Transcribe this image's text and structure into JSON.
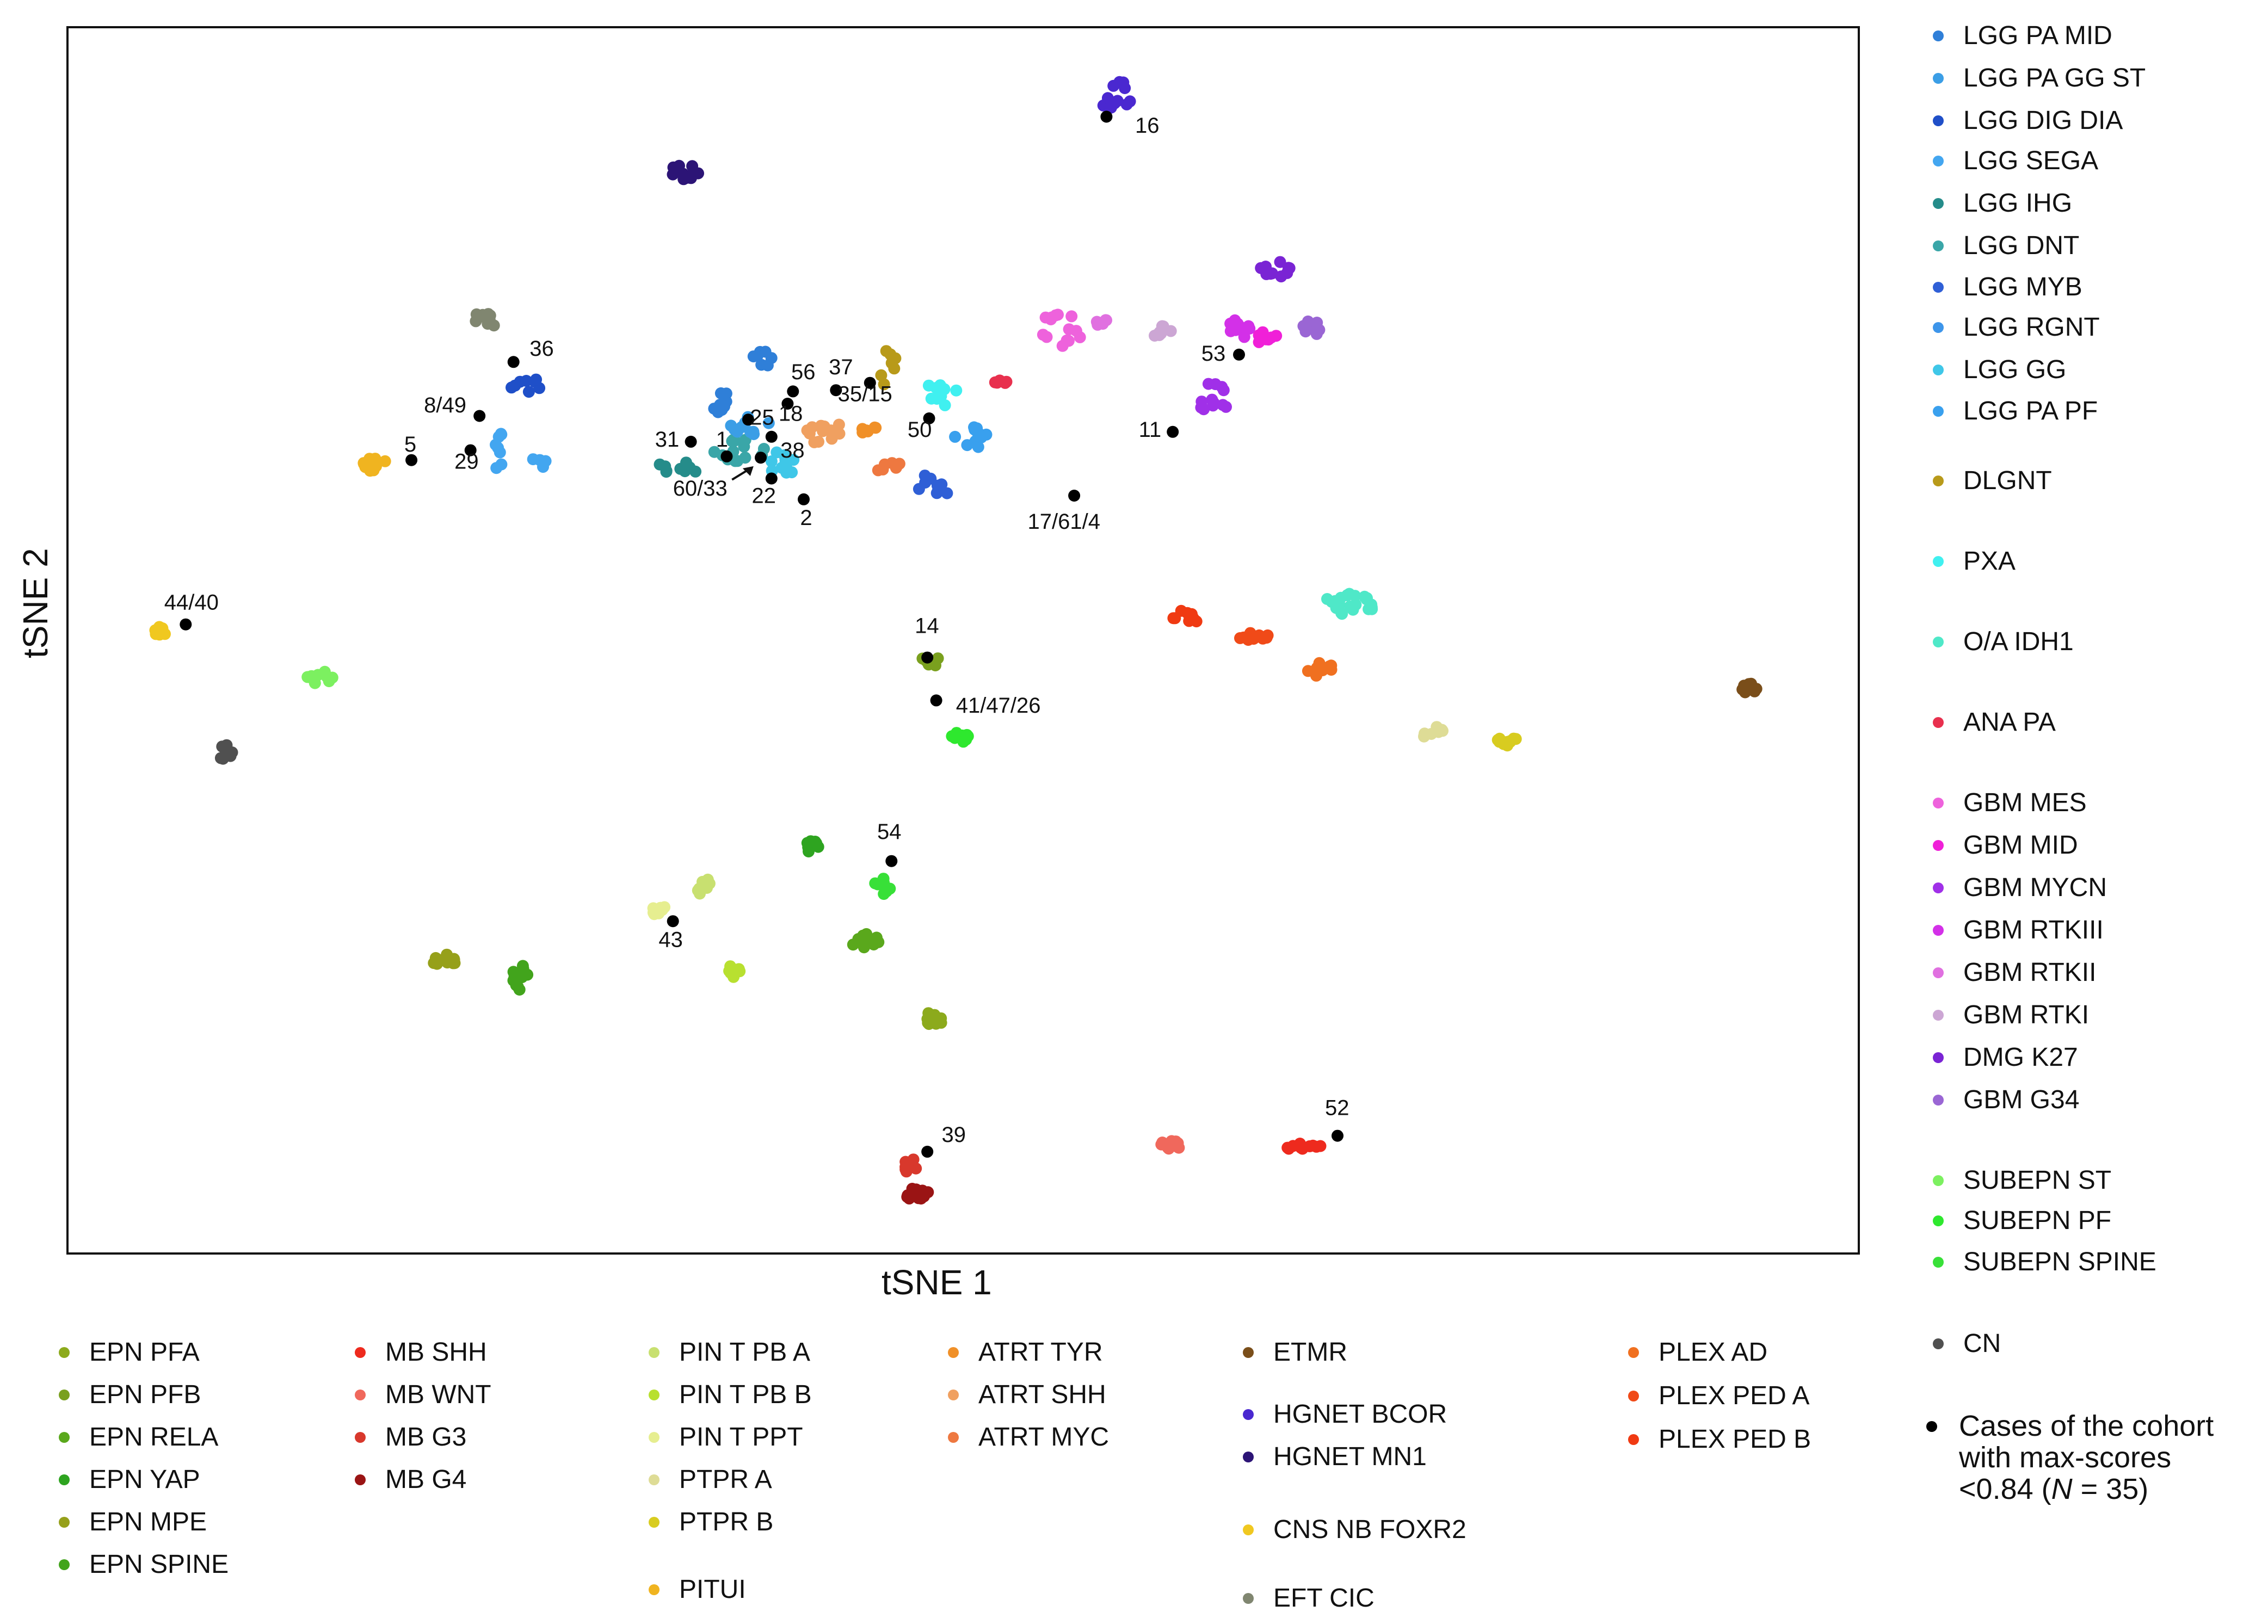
{
  "chart_data": {
    "type": "scatter",
    "xlabel": "tSNE 1",
    "ylabel": "tSNE 2",
    "xlim": [
      0,
      100
    ],
    "ylim": [
      0,
      100
    ],
    "right_legend": [
      {
        "label": "LGG PA MID",
        "color": "#2f7fd8"
      },
      {
        "label": "LGG PA GG ST",
        "color": "#3b9ee6"
      },
      {
        "label": "LGG DIG DIA",
        "color": "#1f4fc8"
      },
      {
        "label": "LGG SEGA",
        "color": "#43a6f0"
      },
      {
        "label": "LGG IHG",
        "color": "#258c8a"
      },
      {
        "label": "LGG DNT",
        "color": "#3aa6a8"
      },
      {
        "label": "LGG MYB",
        "color": "#2f5fd6"
      },
      {
        "label": "LGG RGNT",
        "color": "#3d95ea"
      },
      {
        "label": "LGG GG",
        "color": "#3fc7e8"
      },
      {
        "label": "LGG PA PF",
        "color": "#39a0ee"
      },
      {
        "label": "DLGNT",
        "color": "#b89a1a"
      },
      {
        "label": "PXA",
        "color": "#40f0f0"
      },
      {
        "label": "O/A IDH1",
        "color": "#4fe8c8"
      },
      {
        "label": "ANA PA",
        "color": "#e8304e"
      },
      {
        "label": "GBM MES",
        "color": "#ee62dc"
      },
      {
        "label": "GBM MID",
        "color": "#f020d8"
      },
      {
        "label": "GBM MYCN",
        "color": "#a030e8"
      },
      {
        "label": "GBM RTKIII",
        "color": "#d330e8"
      },
      {
        "label": "GBM RTKII",
        "color": "#e070e0"
      },
      {
        "label": "GBM RTKI",
        "color": "#cca6d4"
      },
      {
        "label": "DMG K27",
        "color": "#7a24d4"
      },
      {
        "label": "GBM G34",
        "color": "#9a66d4"
      },
      {
        "label": "SUBEPN ST",
        "color": "#7cf060"
      },
      {
        "label": "SUBEPN PF",
        "color": "#2ee82e"
      },
      {
        "label": "SUBEPN SPINE",
        "color": "#38e038"
      },
      {
        "label": "CN",
        "color": "#505050"
      }
    ],
    "bottom_legend": [
      {
        "label": "EPN PFA",
        "color": "#8caa1c"
      },
      {
        "label": "EPN PFB",
        "color": "#7aa01e"
      },
      {
        "label": "EPN RELA",
        "color": "#5aa81c"
      },
      {
        "label": "EPN YAP",
        "color": "#2ea420"
      },
      {
        "label": "EPN MPE",
        "color": "#96a01a"
      },
      {
        "label": "EPN SPINE",
        "color": "#42a41c"
      },
      {
        "label": "MB SHH",
        "color": "#ee2a1e"
      },
      {
        "label": "MB WNT",
        "color": "#f0685c"
      },
      {
        "label": "MB G3",
        "color": "#d8382c"
      },
      {
        "label": "MB G4",
        "color": "#9a1414"
      },
      {
        "label": "PIN T PB A",
        "color": "#c8e070"
      },
      {
        "label": "PIN T PB B",
        "color": "#b8e030"
      },
      {
        "label": "PIN T PPT",
        "color": "#e6ee90"
      },
      {
        "label": "PTPR A",
        "color": "#dedc96"
      },
      {
        "label": "PTPR B",
        "color": "#d8cc20"
      },
      {
        "label": "PITUI",
        "color": "#f0b420"
      },
      {
        "label": "ATRT TYR",
        "color": "#f09028"
      },
      {
        "label": "ATRT SHH",
        "color": "#f0a060"
      },
      {
        "label": "ATRT MYC",
        "color": "#ee7840"
      },
      {
        "label": "ETMR",
        "color": "#7a4e1a"
      },
      {
        "label": "HGNET BCOR",
        "color": "#4a28d0"
      },
      {
        "label": "HGNET MN1",
        "color": "#2c1476"
      },
      {
        "label": "CNS NB FOXR2",
        "color": "#f0c820"
      },
      {
        "label": "EFT CIC",
        "color": "#808670"
      },
      {
        "label": "PLEX AD",
        "color": "#f07020"
      },
      {
        "label": "PLEX PED A",
        "color": "#f04a18"
      },
      {
        "label": "PLEX PED B",
        "color": "#f03a12"
      }
    ],
    "cohort_legend": {
      "color": "#000000",
      "line1": "Cases of the cohort",
      "line2": "with max-scores",
      "line3_prefix": "<0.84 (",
      "line3_n": "N",
      "line3_suffix": " = 35)"
    },
    "clusters": [
      {
        "label": "HGNET BCOR",
        "color": "#4a28d0",
        "x": 58.5,
        "y": 94.5,
        "n": 14,
        "sx": 1.0,
        "sy": 1.2
      },
      {
        "label": "HGNET MN1",
        "color": "#2c1476",
        "x": 34.6,
        "y": 88.2,
        "n": 12,
        "sx": 0.9,
        "sy": 1.0
      },
      {
        "label": "EFT CIC",
        "color": "#808670",
        "x": 23.6,
        "y": 76.2,
        "n": 10,
        "sx": 0.9,
        "sy": 0.8
      },
      {
        "label": "DMG K27",
        "color": "#7a24d4",
        "x": 67.5,
        "y": 80.3,
        "n": 10,
        "sx": 0.9,
        "sy": 0.8
      },
      {
        "label": "DLGNT",
        "color": "#b89a1a",
        "x": 45.8,
        "y": 72.2,
        "n": 7,
        "sx": 0.5,
        "sy": 1.6
      },
      {
        "label": "LGG PA MID",
        "color": "#2f7fd8",
        "x": 38.9,
        "y": 73.0,
        "n": 7,
        "sx": 0.7,
        "sy": 0.6
      },
      {
        "label": "LGG PA MID",
        "color": "#2f7fd8",
        "x": 36.8,
        "y": 69.4,
        "n": 10,
        "sx": 0.9,
        "sy": 1.0
      },
      {
        "label": "LGG DIG DIA",
        "color": "#1f4fc8",
        "x": 25.6,
        "y": 70.7,
        "n": 8,
        "sx": 0.9,
        "sy": 0.8
      },
      {
        "label": "LGG SEGA",
        "color": "#43a6f0",
        "x": 24.1,
        "y": 66.5,
        "n": 6,
        "sx": 0.4,
        "sy": 1.4
      },
      {
        "label": "LGG SEGA",
        "color": "#43a6f0",
        "x": 26.3,
        "y": 64.3,
        "n": 4,
        "sx": 0.5,
        "sy": 0.6
      },
      {
        "label": "LGG SEGA",
        "color": "#43a6f0",
        "x": 24.2,
        "y": 64.2,
        "n": 2,
        "sx": 0.3,
        "sy": 0.3
      },
      {
        "label": "PITUI",
        "color": "#f0b420",
        "x": 17.2,
        "y": 64.3,
        "n": 12,
        "sx": 1.1,
        "sy": 0.6
      },
      {
        "label": "LGG IHG",
        "color": "#258c8a",
        "x": 34.0,
        "y": 64.0,
        "n": 9,
        "sx": 1.2,
        "sy": 0.6
      },
      {
        "label": "LGG DNT",
        "color": "#3aa6a8",
        "x": 37.6,
        "y": 65.5,
        "n": 14,
        "sx": 1.6,
        "sy": 0.9
      },
      {
        "label": "LGG GG",
        "color": "#3fc7e8",
        "x": 40.0,
        "y": 64.5,
        "n": 12,
        "sx": 1.0,
        "sy": 1.0
      },
      {
        "label": "LGG PA GG ST",
        "color": "#3b9ee6",
        "x": 38.0,
        "y": 67.5,
        "n": 10,
        "sx": 1.2,
        "sy": 0.8
      },
      {
        "label": "ATRT SHH",
        "color": "#f0a060",
        "x": 42.2,
        "y": 67.0,
        "n": 12,
        "sx": 1.1,
        "sy": 1.0
      },
      {
        "label": "ATRT TYR",
        "color": "#f09028",
        "x": 44.5,
        "y": 67.4,
        "n": 6,
        "sx": 0.7,
        "sy": 0.5
      },
      {
        "label": "ATRT MYC",
        "color": "#ee7840",
        "x": 45.8,
        "y": 64.3,
        "n": 8,
        "sx": 0.8,
        "sy": 0.6
      },
      {
        "label": "PXA",
        "color": "#40f0f0",
        "x": 48.8,
        "y": 70.2,
        "n": 10,
        "sx": 0.9,
        "sy": 1.2
      },
      {
        "label": "LGG PA PF",
        "color": "#39a0ee",
        "x": 50.5,
        "y": 66.5,
        "n": 12,
        "sx": 1.0,
        "sy": 1.0
      },
      {
        "label": "LGG MYB",
        "color": "#2f5fd6",
        "x": 48.4,
        "y": 62.5,
        "n": 9,
        "sx": 0.9,
        "sy": 1.2
      },
      {
        "label": "ANA PA",
        "color": "#e8304e",
        "x": 52.5,
        "y": 71.0,
        "n": 5,
        "sx": 0.9,
        "sy": 0.3
      },
      {
        "label": "GBM MES",
        "color": "#ee62dc",
        "x": 55.5,
        "y": 75.5,
        "n": 14,
        "sx": 1.2,
        "sy": 1.6
      },
      {
        "label": "GBM RTKII",
        "color": "#e070e0",
        "x": 57.5,
        "y": 75.9,
        "n": 6,
        "sx": 0.8,
        "sy": 0.3
      },
      {
        "label": "GBM RTKI",
        "color": "#cca6d4",
        "x": 61.0,
        "y": 75.3,
        "n": 8,
        "sx": 1.0,
        "sy": 0.5
      },
      {
        "label": "GBM RTKIII",
        "color": "#d330e8",
        "x": 65.5,
        "y": 75.6,
        "n": 12,
        "sx": 0.7,
        "sy": 1.0
      },
      {
        "label": "GBM MID",
        "color": "#f020d8",
        "x": 67.0,
        "y": 74.6,
        "n": 8,
        "sx": 0.6,
        "sy": 0.6
      },
      {
        "label": "GBM G34",
        "color": "#9a66d4",
        "x": 69.5,
        "y": 75.5,
        "n": 10,
        "sx": 0.8,
        "sy": 0.6
      },
      {
        "label": "GBM MYCN",
        "color": "#a030e8",
        "x": 63.9,
        "y": 69.8,
        "n": 12,
        "sx": 1.0,
        "sy": 1.2
      },
      {
        "label": "CNS NB FOXR2",
        "color": "#f0c820",
        "x": 5.2,
        "y": 50.7,
        "n": 8,
        "sx": 0.5,
        "sy": 0.5
      },
      {
        "label": "SUBEPN ST",
        "color": "#7cf060",
        "x": 14.1,
        "y": 47.0,
        "n": 10,
        "sx": 0.7,
        "sy": 0.6
      },
      {
        "label": "CN",
        "color": "#505050",
        "x": 8.8,
        "y": 41.0,
        "n": 8,
        "sx": 0.5,
        "sy": 0.8
      },
      {
        "label": "O/A IDH1",
        "color": "#4fe8c8",
        "x": 71.6,
        "y": 53.0,
        "n": 22,
        "sx": 1.5,
        "sy": 0.9
      },
      {
        "label": "PLEX PED B",
        "color": "#f03a12",
        "x": 62.5,
        "y": 52.0,
        "n": 10,
        "sx": 0.8,
        "sy": 0.8
      },
      {
        "label": "PLEX PED A",
        "color": "#f04a18",
        "x": 66.0,
        "y": 50.5,
        "n": 10,
        "sx": 1.2,
        "sy": 0.6
      },
      {
        "label": "PLEX AD",
        "color": "#f07020",
        "x": 70.0,
        "y": 47.6,
        "n": 10,
        "sx": 0.8,
        "sy": 0.6
      },
      {
        "label": "ETMR",
        "color": "#7a4e1a",
        "x": 94.0,
        "y": 46.0,
        "n": 10,
        "sx": 0.6,
        "sy": 0.6
      },
      {
        "label": "PTPR A",
        "color": "#dedc96",
        "x": 76.2,
        "y": 42.5,
        "n": 10,
        "sx": 0.6,
        "sy": 0.6
      },
      {
        "label": "PTPR B",
        "color": "#d8cc20",
        "x": 80.4,
        "y": 41.9,
        "n": 10,
        "sx": 0.6,
        "sy": 0.5
      },
      {
        "label": "EPN PFB",
        "color": "#7aa01e",
        "x": 48.2,
        "y": 48.3,
        "n": 10,
        "sx": 0.6,
        "sy": 0.6
      },
      {
        "label": "SUBEPN PF",
        "color": "#2ee82e",
        "x": 49.8,
        "y": 42.0,
        "n": 10,
        "sx": 0.6,
        "sy": 0.5
      },
      {
        "label": "EPN YAP",
        "color": "#2ea420",
        "x": 41.6,
        "y": 33.2,
        "n": 10,
        "sx": 0.5,
        "sy": 0.5
      },
      {
        "label": "SUBEPN SPINE",
        "color": "#38e038",
        "x": 45.5,
        "y": 30.0,
        "n": 10,
        "sx": 0.5,
        "sy": 0.7
      },
      {
        "label": "PIN T PB A",
        "color": "#c8e070",
        "x": 35.5,
        "y": 30.0,
        "n": 8,
        "sx": 0.4,
        "sy": 0.8
      },
      {
        "label": "PIN T PPT",
        "color": "#e6ee90",
        "x": 33.0,
        "y": 28.0,
        "n": 8,
        "sx": 0.6,
        "sy": 0.5
      },
      {
        "label": "EPN RELA",
        "color": "#5aa81c",
        "x": 44.5,
        "y": 25.5,
        "n": 10,
        "sx": 0.8,
        "sy": 0.6
      },
      {
        "label": "PIN T PB B",
        "color": "#b8e030",
        "x": 37.3,
        "y": 23.3,
        "n": 10,
        "sx": 0.5,
        "sy": 0.8
      },
      {
        "label": "EPN MPE",
        "color": "#96a01a",
        "x": 21.0,
        "y": 23.8,
        "n": 10,
        "sx": 0.7,
        "sy": 0.6
      },
      {
        "label": "EPN SPINE",
        "color": "#42a41c",
        "x": 25.3,
        "y": 22.4,
        "n": 10,
        "sx": 0.5,
        "sy": 1.1
      },
      {
        "label": "EPN PFA",
        "color": "#8caa1c",
        "x": 48.3,
        "y": 19.1,
        "n": 10,
        "sx": 0.6,
        "sy": 0.6
      },
      {
        "label": "MB G3",
        "color": "#d8382c",
        "x": 47.1,
        "y": 7.1,
        "n": 8,
        "sx": 0.5,
        "sy": 0.6
      },
      {
        "label": "MB G4",
        "color": "#9a1414",
        "x": 47.4,
        "y": 4.9,
        "n": 12,
        "sx": 0.7,
        "sy": 0.6
      },
      {
        "label": "MB WNT",
        "color": "#f0685c",
        "x": 61.6,
        "y": 8.8,
        "n": 10,
        "sx": 0.7,
        "sy": 0.4
      },
      {
        "label": "MB SHH",
        "color": "#ee2a1e",
        "x": 69.0,
        "y": 8.7,
        "n": 10,
        "sx": 1.0,
        "sy": 0.3
      }
    ],
    "cases": [
      {
        "label": "16",
        "x": 58.0,
        "y": 92.7,
        "lx": 59.6,
        "ly": 91.4,
        "anchor": "start"
      },
      {
        "label": "36",
        "x": 24.9,
        "y": 72.7,
        "lx": 25.8,
        "ly": 73.2,
        "anchor": "start"
      },
      {
        "label": "8/49",
        "x": 23.0,
        "y": 68.3,
        "lx": 19.9,
        "ly": 68.6,
        "anchor": "start"
      },
      {
        "label": "5",
        "x": 19.2,
        "y": 64.7,
        "lx": 18.8,
        "ly": 65.4,
        "anchor": "start"
      },
      {
        "label": "29",
        "x": 22.5,
        "y": 65.5,
        "lx": 21.6,
        "ly": 64.0,
        "anchor": "start"
      },
      {
        "label": "56",
        "x": 40.5,
        "y": 70.3,
        "lx": 40.4,
        "ly": 71.3,
        "anchor": "start"
      },
      {
        "label": "37",
        "x": 42.9,
        "y": 70.4,
        "lx": 42.5,
        "ly": 71.7,
        "anchor": "start"
      },
      {
        "label": "35/15",
        "x": 44.8,
        "y": 71.0,
        "lx": 43.0,
        "ly": 69.5,
        "anchor": "start"
      },
      {
        "label": "18",
        "x": 40.2,
        "y": 69.3,
        "lx": 39.7,
        "ly": 67.9,
        "anchor": "start"
      },
      {
        "label": "25",
        "x": 38.0,
        "y": 68.0,
        "lx": 38.1,
        "ly": 67.6,
        "anchor": "start"
      },
      {
        "label": "31",
        "x": 34.8,
        "y": 66.2,
        "lx": 32.8,
        "ly": 65.8,
        "anchor": "start"
      },
      {
        "label": "1",
        "x": 36.8,
        "y": 65.0,
        "lx": 36.2,
        "ly": 65.8,
        "anchor": "start"
      },
      {
        "label": "38",
        "x": 39.3,
        "y": 66.6,
        "lx": 39.8,
        "ly": 64.9,
        "anchor": "start"
      },
      {
        "label": "60/33",
        "x": 38.7,
        "y": 64.9,
        "lx": 33.8,
        "ly": 61.8,
        "anchor": "start"
      },
      {
        "label": "22",
        "x": 39.3,
        "y": 63.2,
        "lx": 38.2,
        "ly": 61.2,
        "anchor": "start"
      },
      {
        "label": "2",
        "x": 41.1,
        "y": 61.5,
        "lx": 40.9,
        "ly": 59.4,
        "anchor": "start"
      },
      {
        "label": "50",
        "x": 48.1,
        "y": 68.1,
        "lx": 46.9,
        "ly": 66.6,
        "anchor": "start"
      },
      {
        "label": "11",
        "x": 61.7,
        "y": 67.0,
        "lx": 59.8,
        "ly": 66.6,
        "anchor": "start"
      },
      {
        "label": "53",
        "x": 65.4,
        "y": 73.3,
        "lx": 63.3,
        "ly": 72.8,
        "anchor": "start"
      },
      {
        "label": "17/61/4",
        "x": 56.2,
        "y": 61.8,
        "lx": 53.6,
        "ly": 59.1,
        "anchor": "start"
      },
      {
        "label": "44/40",
        "x": 6.6,
        "y": 51.3,
        "lx": 5.4,
        "ly": 52.5,
        "anchor": "start"
      },
      {
        "label": "14",
        "x": 48.0,
        "y": 48.6,
        "lx": 47.3,
        "ly": 50.6,
        "anchor": "start"
      },
      {
        "label": "41/47/26",
        "x": 48.5,
        "y": 45.1,
        "lx": 49.6,
        "ly": 44.1,
        "anchor": "start"
      },
      {
        "label": "54",
        "x": 46.0,
        "y": 32.0,
        "lx": 45.2,
        "ly": 33.8,
        "anchor": "start"
      },
      {
        "label": "43",
        "x": 33.8,
        "y": 27.1,
        "lx": 33.0,
        "ly": 25.0,
        "anchor": "start"
      },
      {
        "label": "39",
        "x": 48.0,
        "y": 8.3,
        "lx": 48.8,
        "ly": 9.1,
        "anchor": "start"
      },
      {
        "label": "52",
        "x": 70.9,
        "y": 9.6,
        "lx": 70.2,
        "ly": 11.3,
        "anchor": "start"
      }
    ]
  }
}
